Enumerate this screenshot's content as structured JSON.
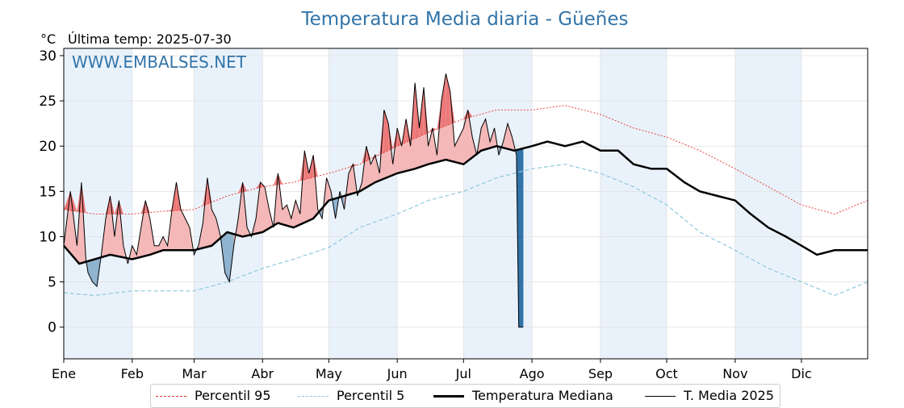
{
  "chart_data": {
    "type": "line",
    "title": "Temperatura Media diaria - Güeñes",
    "unit_label": "°C",
    "last_temp_label": "Última temp: 2025-07-30",
    "watermark": "WWW.EMBALSES.NET",
    "ylim": [
      -3.5,
      30.8
    ],
    "yticks": [
      0,
      5,
      10,
      15,
      20,
      25,
      30
    ],
    "months": [
      "Ene",
      "Feb",
      "Mar",
      "Abr",
      "May",
      "Jun",
      "Jul",
      "Ago",
      "Sep",
      "Oct",
      "Nov",
      "Dic"
    ],
    "month_start_days": [
      1,
      32,
      60,
      91,
      121,
      152,
      182,
      213,
      244,
      274,
      305,
      335
    ],
    "days_in_year": 365,
    "grid": true,
    "legend_position": "bottom",
    "colors": {
      "title": "#3274a8",
      "watermark": "#3274a8",
      "p95": "#e8302a",
      "p5": "#8ec9dc",
      "median": "#000000",
      "media2025": "#000000",
      "above_fill": "#f4b8b8",
      "above_extreme_fill": "#ec7878",
      "below_fill": "#8fb4d0",
      "drop_fill": "#3274a8",
      "band": "#e9f2fb"
    },
    "series": [
      {
        "name": "Percentil 95",
        "key": "p95",
        "days": [
          1,
          15,
          32,
          46,
          60,
          75,
          91,
          105,
          121,
          135,
          152,
          166,
          182,
          197,
          213,
          228,
          244,
          259,
          274,
          289,
          305,
          320,
          335,
          350,
          365
        ],
        "values": [
          13.0,
          12.5,
          12.5,
          12.8,
          13.0,
          14.5,
          15.5,
          16.0,
          17.0,
          18.0,
          20.0,
          21.5,
          23.0,
          24.0,
          24.0,
          24.5,
          23.5,
          22.0,
          21.0,
          19.5,
          17.5,
          15.5,
          13.5,
          12.5,
          14.0
        ]
      },
      {
        "name": "Percentil 5",
        "key": "p5",
        "days": [
          1,
          15,
          32,
          46,
          60,
          75,
          91,
          105,
          121,
          135,
          152,
          166,
          182,
          197,
          213,
          228,
          244,
          259,
          274,
          289,
          305,
          320,
          335,
          350,
          365
        ],
        "values": [
          3.8,
          3.5,
          4.0,
          4.0,
          4.0,
          5.0,
          6.5,
          7.5,
          8.8,
          11.0,
          12.5,
          14.0,
          15.0,
          16.5,
          17.5,
          18.0,
          17.0,
          15.5,
          13.5,
          10.5,
          8.5,
          6.5,
          5.0,
          3.5,
          5.0
        ]
      },
      {
        "name": "Temperatura Mediana",
        "key": "median",
        "days": [
          1,
          8,
          15,
          22,
          32,
          40,
          46,
          55,
          60,
          68,
          75,
          82,
          91,
          98,
          105,
          114,
          121,
          128,
          135,
          142,
          152,
          160,
          166,
          174,
          182,
          190,
          197,
          205,
          213,
          220,
          228,
          236,
          244,
          252,
          259,
          267,
          274,
          282,
          289,
          297,
          305,
          312,
          320,
          328,
          335,
          342,
          350,
          358,
          365
        ],
        "values": [
          9.0,
          7.0,
          7.5,
          8.0,
          7.5,
          8.0,
          8.5,
          8.5,
          8.5,
          9.0,
          10.5,
          10.0,
          10.5,
          11.5,
          11.0,
          12.0,
          14.0,
          14.5,
          15.0,
          16.0,
          17.0,
          17.5,
          18.0,
          18.5,
          18.0,
          19.5,
          20.0,
          19.5,
          20.0,
          20.5,
          20.0,
          20.5,
          19.5,
          19.5,
          18.0,
          17.5,
          17.5,
          16.0,
          15.0,
          14.5,
          14.0,
          12.5,
          11.0,
          10.0,
          9.0,
          8.0,
          8.5,
          8.5,
          8.5
        ]
      },
      {
        "name": "T. Media 2025",
        "key": "media2025",
        "days": [
          1,
          4,
          7,
          9,
          11,
          12,
          14,
          16,
          18,
          20,
          22,
          24,
          26,
          28,
          30,
          32,
          34,
          36,
          38,
          40,
          42,
          44,
          46,
          48,
          50,
          52,
          54,
          56,
          58,
          60,
          62,
          64,
          66,
          68,
          70,
          72,
          74,
          76,
          78,
          80,
          82,
          84,
          86,
          88,
          90,
          92,
          94,
          96,
          98,
          100,
          102,
          104,
          106,
          108,
          110,
          112,
          114,
          116,
          118,
          120,
          122,
          124,
          126,
          128,
          130,
          132,
          134,
          136,
          138,
          140,
          142,
          144,
          146,
          148,
          150,
          152,
          154,
          156,
          158,
          160,
          162,
          164,
          166,
          168,
          170,
          172,
          174,
          176,
          178,
          180,
          182,
          184,
          186,
          188,
          190,
          192,
          194,
          196,
          198,
          200,
          202,
          204,
          206,
          207,
          208,
          209
        ],
        "values": [
          9.0,
          15.0,
          9.0,
          16.0,
          7.5,
          6.0,
          5.0,
          4.5,
          8.0,
          12.0,
          14.5,
          10.0,
          14.0,
          9.0,
          7.0,
          9.0,
          8.0,
          11.0,
          14.0,
          12.0,
          9.0,
          9.0,
          10.0,
          9.0,
          13.0,
          16.0,
          13.0,
          12.0,
          11.0,
          8.0,
          9.0,
          11.5,
          16.5,
          13.0,
          12.0,
          10.0,
          6.0,
          5.0,
          9.0,
          12.0,
          16.0,
          11.0,
          10.0,
          12.0,
          16.0,
          15.5,
          13.0,
          11.0,
          17.0,
          13.0,
          13.5,
          12.0,
          14.0,
          12.5,
          19.5,
          17.0,
          19.0,
          13.0,
          12.0,
          16.5,
          15.0,
          12.0,
          15.0,
          13.0,
          17.0,
          18.0,
          14.5,
          16.0,
          20.0,
          18.0,
          19.0,
          17.0,
          24.0,
          22.5,
          18.0,
          22.0,
          20.0,
          23.0,
          20.0,
          27.0,
          22.0,
          26.5,
          20.0,
          22.0,
          19.0,
          25.0,
          28.0,
          26.0,
          20.0,
          21.0,
          22.0,
          24.0,
          21.0,
          19.0,
          22.0,
          23.0,
          20.5,
          22.0,
          19.0,
          20.5,
          22.5,
          21.0,
          19.0,
          0.0,
          0.0,
          0.0
        ]
      }
    ]
  },
  "legend": {
    "p95": "Percentil 95",
    "p5": "Percentil 5",
    "median": "Temperatura Mediana",
    "media2025": "T. Media 2025"
  }
}
